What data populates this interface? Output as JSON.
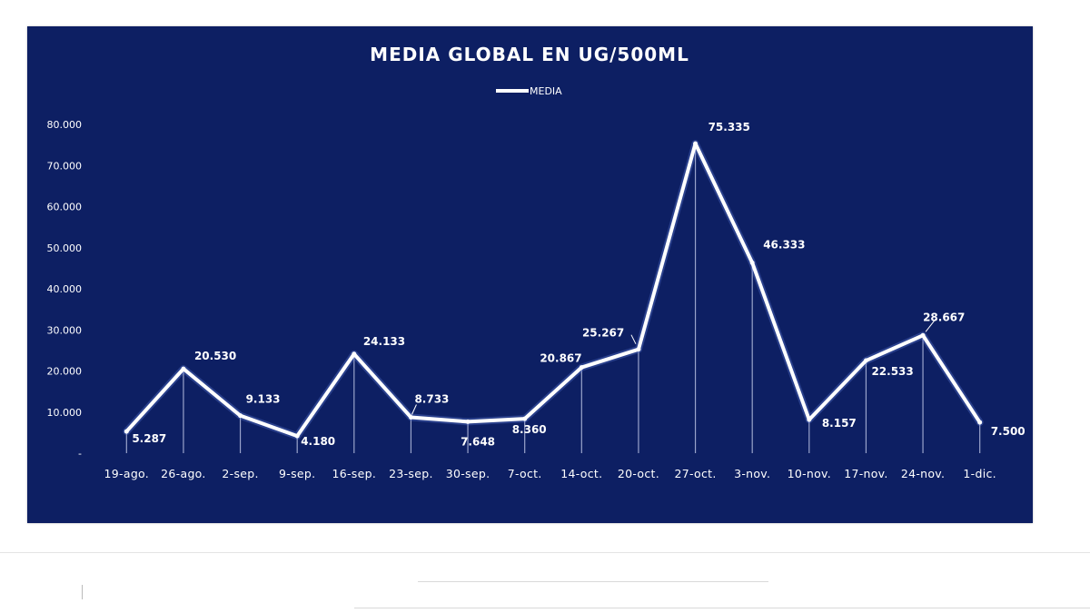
{
  "chart_data": {
    "type": "line",
    "title": "MEDIA GLOBAL EN UG/500ML",
    "legend": "top-center",
    "series": [
      {
        "name": "MEDIA",
        "color": "#ffffff",
        "values": [
          5287,
          20530,
          9133,
          4180,
          24133,
          8733,
          7648,
          8360,
          20867,
          25267,
          75335,
          46333,
          8157,
          22533,
          28667,
          7500
        ]
      }
    ],
    "categories": [
      "19-ago.",
      "26-ago.",
      "2-sep.",
      "9-sep.",
      "16-sep.",
      "23-sep.",
      "30-sep.",
      "7-oct.",
      "14-oct.",
      "20-oct.",
      "27-oct.",
      "3-nov.",
      "10-nov.",
      "17-nov.",
      "24-nov.",
      "1-dic."
    ],
    "data_labels": [
      "5.287",
      "20.530",
      "9.133",
      "4.180",
      "24.133",
      "8.733",
      "7.648",
      "8.360",
      "20.867",
      "25.267",
      "75.335",
      "46.333",
      "8.157",
      "22.533",
      "28.667",
      "7.500"
    ],
    "y_ticks": [
      "-",
      "10.000",
      "20.000",
      "30.000",
      "40.000",
      "50.000",
      "60.000",
      "70.000",
      "80.000"
    ],
    "ylim": [
      0,
      80000
    ],
    "grid": false,
    "drop_lines": true,
    "background_color": "#0d1f63",
    "line_color": "#ffffff"
  }
}
